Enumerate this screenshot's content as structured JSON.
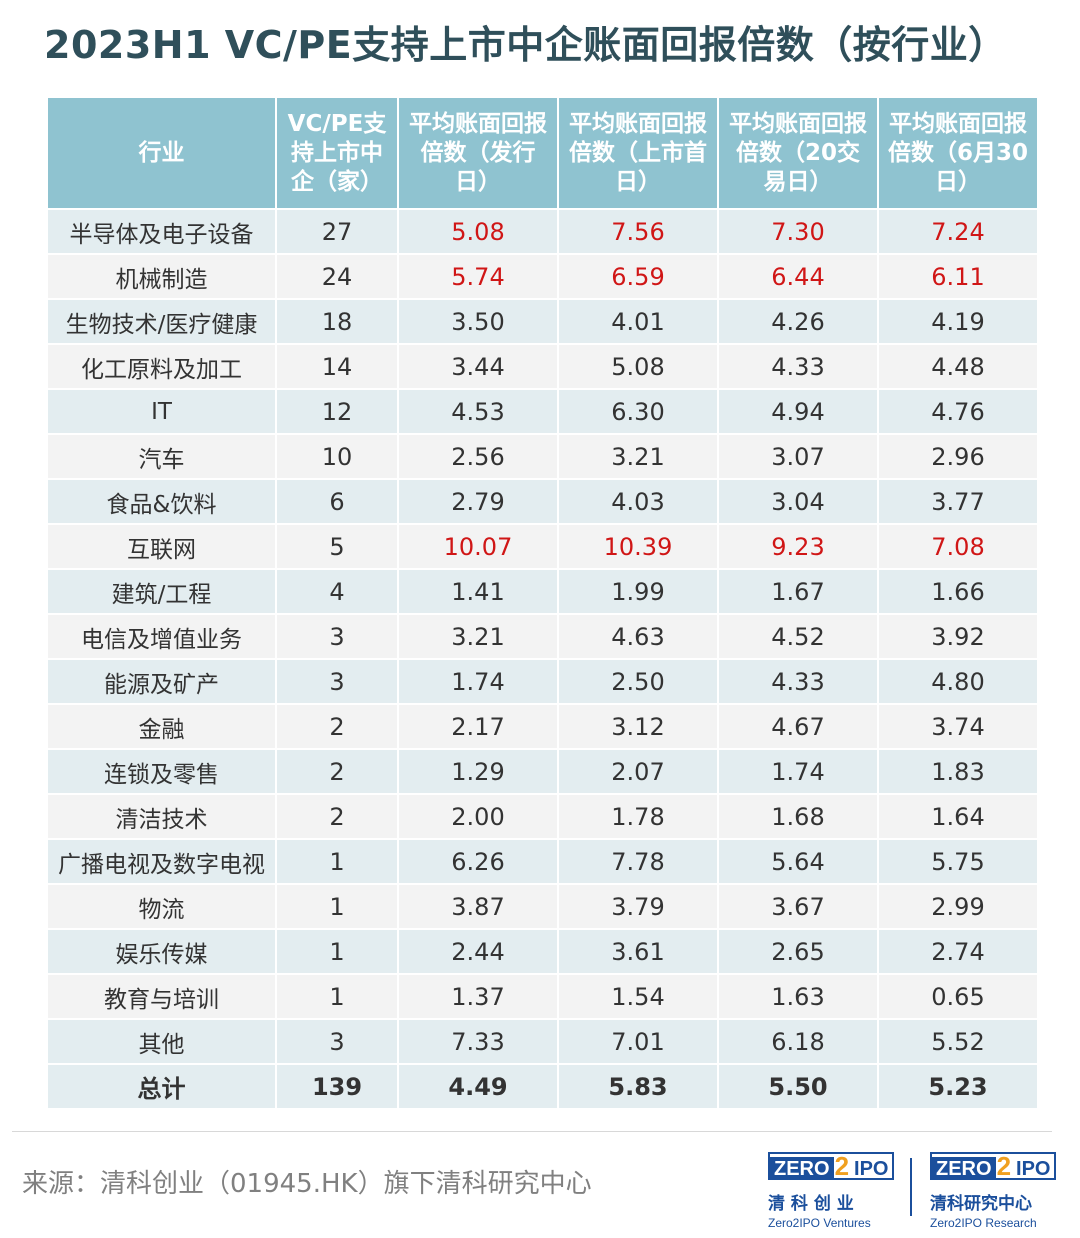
{
  "title": "2023H1 VC/PE支持上市中企账面回报倍数（按行业）",
  "colors": {
    "header_bg": "#8fc3d0",
    "row_band": "#e3edf0",
    "row_alt": "#f3f3f3",
    "highlight": "#d01616"
  },
  "table": {
    "headers": [
      "行业",
      "VC/PE支持上市中企（家）",
      "平均账面回报倍数（发行日）",
      "平均账面回报倍数（上市首日）",
      "平均账面回报倍数（20交易日）",
      "平均账面回报倍数（6月30日）"
    ],
    "rows": [
      [
        "半导体及电子设备",
        "27",
        "5.08",
        "7.56",
        "7.30",
        "7.24"
      ],
      [
        "机械制造",
        "24",
        "5.74",
        "6.59",
        "6.44",
        "6.11"
      ],
      [
        "生物技术/医疗健康",
        "18",
        "3.50",
        "4.01",
        "4.26",
        "4.19"
      ],
      [
        "化工原料及加工",
        "14",
        "3.44",
        "5.08",
        "4.33",
        "4.48"
      ],
      [
        "IT",
        "12",
        "4.53",
        "6.30",
        "4.94",
        "4.76"
      ],
      [
        "汽车",
        "10",
        "2.56",
        "3.21",
        "3.07",
        "2.96"
      ],
      [
        "食品&饮料",
        "6",
        "2.79",
        "4.03",
        "3.04",
        "3.77"
      ],
      [
        "互联网",
        "5",
        "10.07",
        "10.39",
        "9.23",
        "7.08"
      ],
      [
        "建筑/工程",
        "4",
        "1.41",
        "1.99",
        "1.67",
        "1.66"
      ],
      [
        "电信及增值业务",
        "3",
        "3.21",
        "4.63",
        "4.52",
        "3.92"
      ],
      [
        "能源及矿产",
        "3",
        "1.74",
        "2.50",
        "4.33",
        "4.80"
      ],
      [
        "金融",
        "2",
        "2.17",
        "3.12",
        "4.67",
        "3.74"
      ],
      [
        "连锁及零售",
        "2",
        "1.29",
        "2.07",
        "1.74",
        "1.83"
      ],
      [
        "清洁技术",
        "2",
        "2.00",
        "1.78",
        "1.68",
        "1.64"
      ],
      [
        "广播电视及数字电视",
        "1",
        "6.26",
        "7.78",
        "5.64",
        "5.75"
      ],
      [
        "物流",
        "1",
        "3.87",
        "3.79",
        "3.67",
        "2.99"
      ],
      [
        "娱乐传媒",
        "1",
        "2.44",
        "3.61",
        "2.65",
        "2.74"
      ],
      [
        "教育与培训",
        "1",
        "1.37",
        "1.54",
        "1.63",
        "0.65"
      ],
      [
        "其他",
        "3",
        "7.33",
        "7.01",
        "6.18",
        "5.52"
      ]
    ],
    "highlighted_rows": [
      "半导体及电子设备",
      "机械制造",
      "互联网"
    ],
    "total": [
      "总计",
      "139",
      "4.49",
      "5.83",
      "5.50",
      "5.23"
    ]
  },
  "source": "来源：清科创业（01945.HK）旗下清科研究中心",
  "logos": [
    {
      "brand_left": "ZERO",
      "brand_mid": "2",
      "brand_right": "IPO",
      "cn": "清 科 创 业",
      "en": "Zero2IPO Ventures"
    },
    {
      "brand_left": "ZERO",
      "brand_mid": "2",
      "brand_right": "IPO",
      "cn": "清科研究中心",
      "en": "Zero2IPO Research"
    }
  ]
}
